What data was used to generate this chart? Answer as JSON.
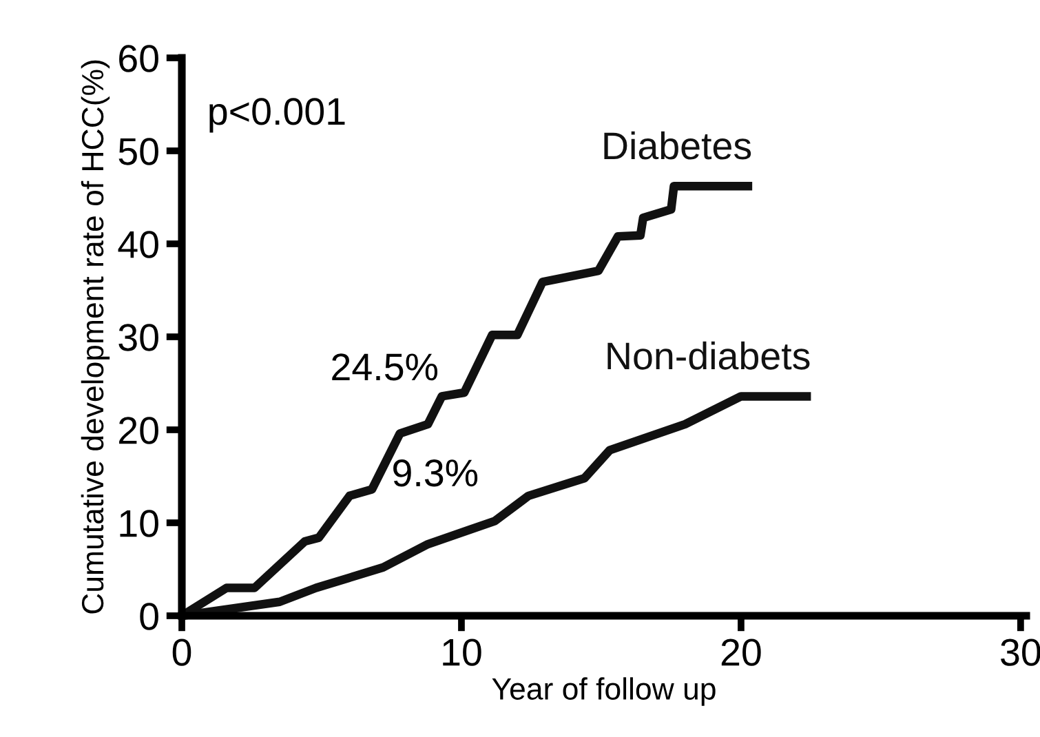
{
  "chart_data": {
    "type": "line",
    "xlabel": "Year of follow up",
    "ylabel": "Cumutative development rate of HCC(%)",
    "xlim": [
      0,
      30.2
    ],
    "xticks": [
      0,
      10,
      20,
      30
    ],
    "ylim": [
      0,
      60
    ],
    "yticks": [
      0,
      10,
      20,
      30,
      40,
      50,
      60
    ],
    "grid": false,
    "legend": false,
    "marker": "none",
    "line_style": "solid",
    "series": [
      {
        "name": "Diabetes",
        "color": "#111111",
        "x": [
          0,
          1.6,
          2.6,
          4.4,
          4.9,
          6.0,
          6.8,
          7.8,
          8.8,
          9.3,
          10.1,
          11.1,
          12.0,
          12.9,
          14.9,
          15.6,
          16.4,
          16.5,
          17.5,
          17.6,
          20.4
        ],
        "values": [
          0,
          3.0,
          3.0,
          8.0,
          8.4,
          12.9,
          13.6,
          19.6,
          20.6,
          23.6,
          24.0,
          30.2,
          30.2,
          35.9,
          37.1,
          40.8,
          40.9,
          42.8,
          43.7,
          46.2,
          46.2
        ]
      },
      {
        "name": "Non-diabets",
        "color": "#111111",
        "x": [
          0,
          3.5,
          4.8,
          7.2,
          8.8,
          11.2,
          12.4,
          14.4,
          15.3,
          18.0,
          20.0,
          22.5
        ],
        "values": [
          0,
          1.5,
          3.0,
          5.2,
          7.7,
          10.2,
          12.9,
          14.8,
          17.8,
          20.6,
          23.6,
          23.6
        ]
      }
    ],
    "annotations": [
      "p<0.001",
      "24.5%",
      "9.3%"
    ]
  }
}
